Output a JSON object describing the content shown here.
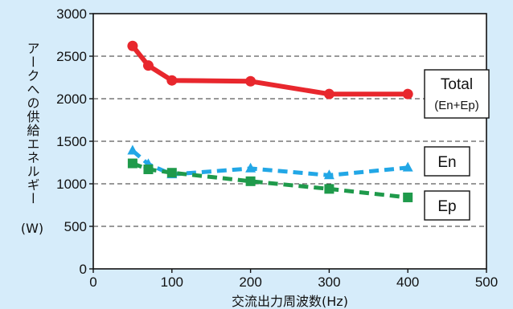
{
  "chart_data": {
    "type": "line",
    "xlabel": "交流出力周波数(Hz)",
    "ylabel_text": "アークへの供給エネルギー",
    "ylabel_unit": "(W)",
    "xlim": [
      0,
      500
    ],
    "ylim": [
      0,
      3000
    ],
    "x_ticks": [
      0,
      100,
      200,
      300,
      400,
      500
    ],
    "y_ticks": [
      0,
      500,
      1000,
      1500,
      2000,
      2500,
      3000
    ],
    "grid": "horizontal-dashed",
    "series": [
      {
        "label_lines": [
          "Total",
          "(En+Ep)"
        ],
        "color": "#e8272d",
        "style": "solid",
        "marker": "circle",
        "x": [
          50,
          70,
          100,
          200,
          300,
          400
        ],
        "y": [
          2620,
          2390,
          2215,
          2205,
          2055,
          2055
        ]
      },
      {
        "label_lines": [
          "En"
        ],
        "color": "#22a7e6",
        "style": "dashed",
        "marker": "triangle",
        "x": [
          50,
          70,
          100,
          200,
          300,
          400
        ],
        "y": [
          1390,
          1230,
          1110,
          1180,
          1100,
          1190
        ]
      },
      {
        "label_lines": [
          "Ep"
        ],
        "color": "#1f9a4b",
        "style": "dashed",
        "marker": "square",
        "x": [
          50,
          70,
          100,
          200,
          300,
          400
        ],
        "y": [
          1240,
          1170,
          1130,
          1030,
          940,
          840
        ]
      }
    ]
  }
}
